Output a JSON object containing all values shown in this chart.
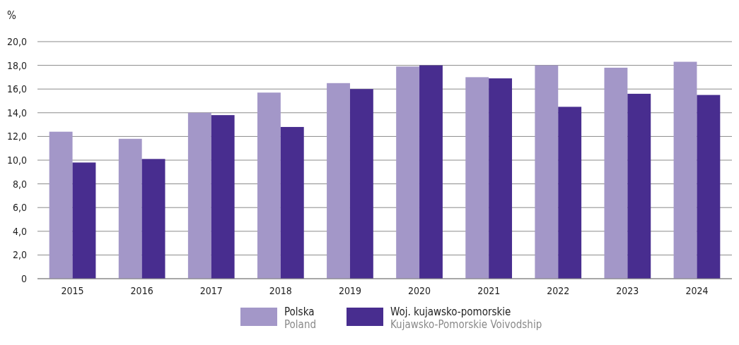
{
  "chart_data": {
    "type": "bar",
    "ylabel": "%",
    "categories": [
      "2015",
      "2016",
      "2017",
      "2018",
      "2019",
      "2020",
      "2021",
      "2022",
      "2023",
      "2024"
    ],
    "series": [
      {
        "name": "Polska\nPoland",
        "color": "#a397c8",
        "values": [
          12.4,
          11.8,
          14.0,
          15.7,
          16.5,
          17.9,
          17.0,
          18.0,
          17.8,
          18.3
        ]
      },
      {
        "name": "Woj. kujawsko-pomorskie\nKujawsko-Pomorskie Voivodship",
        "color": "#482d8f",
        "values": [
          9.8,
          10.1,
          13.8,
          12.8,
          16.0,
          18.0,
          16.9,
          14.5,
          15.6,
          15.5
        ]
      }
    ],
    "ylim": [
      0,
      20
    ],
    "yticks": [
      0,
      {
        "value": 2,
        "label": "2,0"
      },
      {
        "value": 4,
        "label": "4,0"
      },
      {
        "value": 6,
        "label": "6,0"
      },
      {
        "value": 8,
        "label": "8,0"
      },
      {
        "value": 10,
        "label": "10,0"
      },
      {
        "value": 12,
        "label": "12,0"
      },
      {
        "value": 14,
        "label": "14,0"
      },
      {
        "value": 16,
        "label": "16,0"
      },
      {
        "value": 18,
        "label": "18,0"
      },
      {
        "value": 20,
        "label": "20,0"
      }
    ],
    "grid": "y",
    "legend": "bottom"
  }
}
